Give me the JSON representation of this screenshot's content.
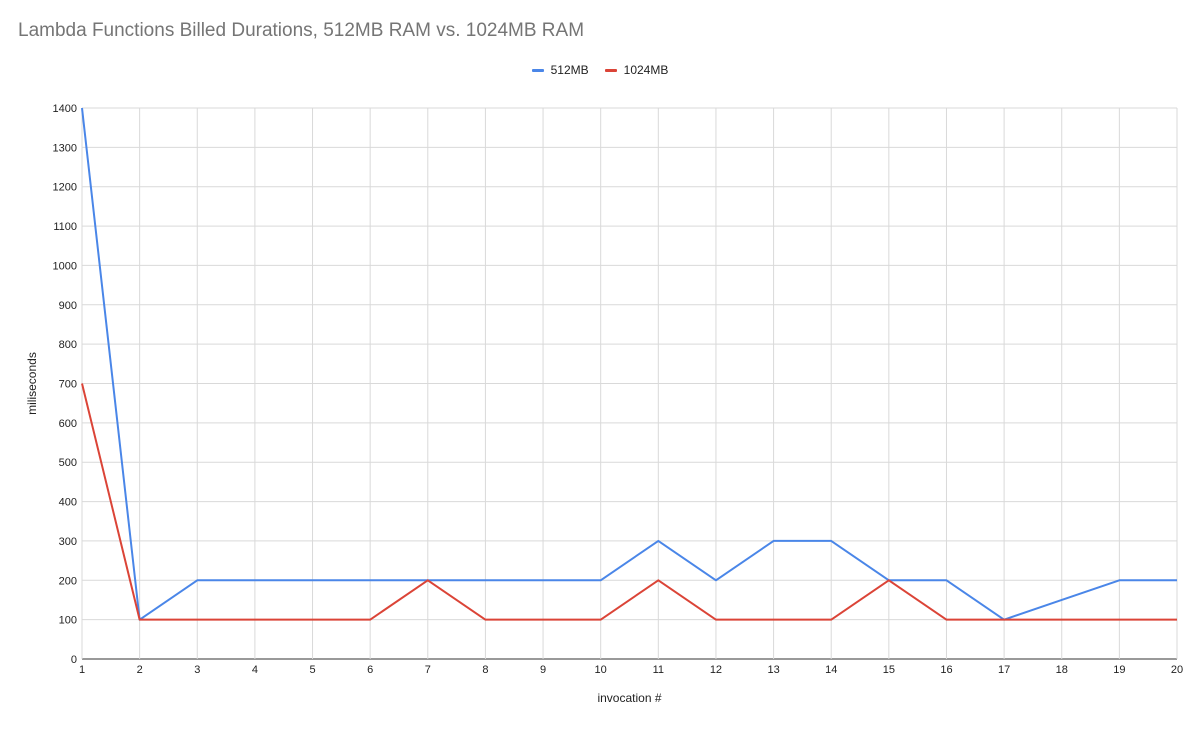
{
  "chart_data": {
    "type": "line",
    "title": "Lambda Functions Billed Durations, 512MB RAM vs. 1024MB RAM",
    "xlabel": "invocation #",
    "ylabel": "miliseconds",
    "xlim": [
      1,
      20
    ],
    "ylim": [
      0,
      1400
    ],
    "yticks": [
      0,
      100,
      200,
      300,
      400,
      500,
      600,
      700,
      800,
      900,
      1000,
      1100,
      1200,
      1300,
      1400
    ],
    "x": [
      1,
      2,
      3,
      4,
      5,
      6,
      7,
      8,
      9,
      10,
      11,
      12,
      13,
      14,
      15,
      16,
      17,
      18,
      19,
      20
    ],
    "grid": true,
    "legend_position": "top-center",
    "series": [
      {
        "name": "512MB",
        "color": "#4a86e8",
        "values": [
          1400,
          100,
          200,
          200,
          200,
          200,
          200,
          200,
          200,
          200,
          300,
          200,
          300,
          300,
          200,
          200,
          100,
          150,
          200,
          200
        ]
      },
      {
        "name": "1024MB",
        "color": "#db4437",
        "values": [
          700,
          100,
          100,
          100,
          100,
          100,
          200,
          100,
          100,
          100,
          200,
          100,
          100,
          100,
          200,
          100,
          100,
          100,
          100,
          100
        ]
      }
    ]
  }
}
